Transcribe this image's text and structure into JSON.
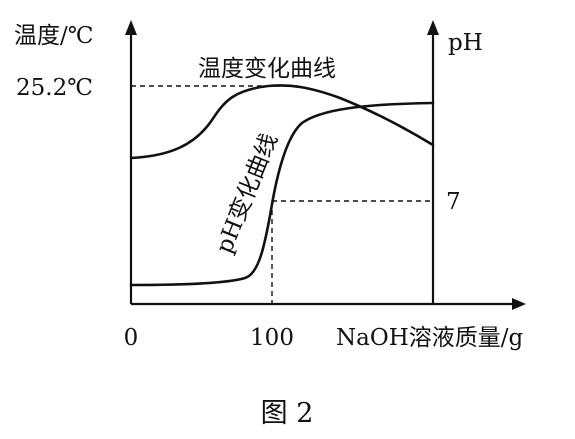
{
  "chart_data": {
    "type": "line",
    "left_axis_label": "温度/℃",
    "right_axis_label": "pH",
    "xlabel": "NaOH溶液质量/g",
    "x_ticks": [
      {
        "value": 0,
        "label": "0"
      },
      {
        "value": 100,
        "label": "100"
      }
    ],
    "left_marker": {
      "value": 25.2,
      "label": "25.2℃"
    },
    "right_marker": {
      "value": 7,
      "label": "7"
    },
    "series": [
      {
        "name": "温度变化曲线",
        "axis": "left",
        "points": [
          [
            0,
            22.6
          ],
          [
            30,
            22.9
          ],
          [
            60,
            23.6
          ],
          [
            80,
            24.6
          ],
          [
            100,
            25.15
          ],
          [
            110,
            25.2
          ],
          [
            135,
            25.1
          ],
          [
            160,
            24.9
          ],
          [
            185,
            24.5
          ],
          [
            210,
            23.9
          ]
        ]
      },
      {
        "name": "pH变化曲线",
        "axis": "right",
        "points": [
          [
            0,
            1.0
          ],
          [
            40,
            1.1
          ],
          [
            70,
            1.4
          ],
          [
            88,
            2.6
          ],
          [
            100,
            7.0
          ],
          [
            108,
            9.6
          ],
          [
            120,
            10.8
          ],
          [
            140,
            11.5
          ],
          [
            170,
            11.85
          ],
          [
            210,
            12.0
          ]
        ]
      }
    ]
  },
  "caption": "图 2"
}
